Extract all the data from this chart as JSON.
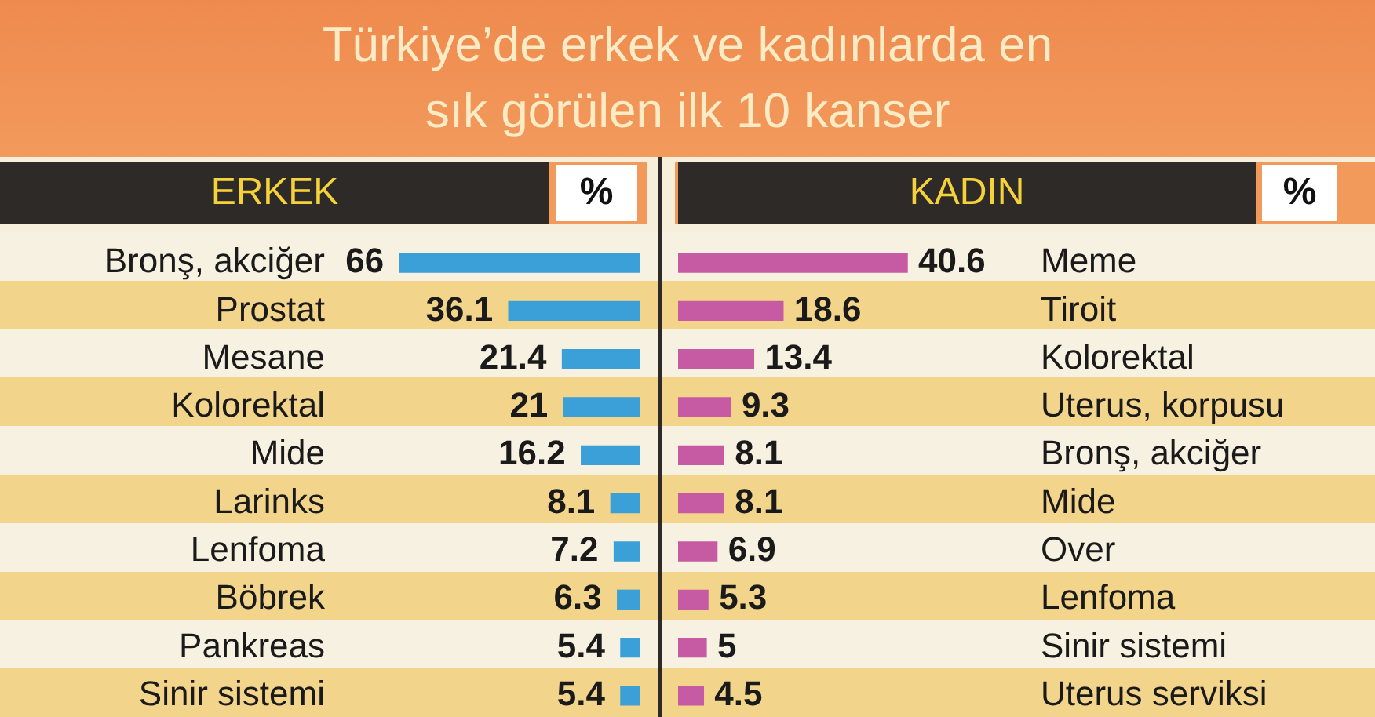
{
  "chart_data": [
    {
      "type": "bar",
      "orientation": "horizontal",
      "title": "Türkiye’de erkek ve kadınlarda en sık görülen ilk 10 kanser",
      "subtitle": "ERKEK",
      "xlabel": "%",
      "categories": [
        "Bronş, akciğer",
        "Prostat",
        "Mesane",
        "Kolorektal",
        "Mide",
        "Larinks",
        "Lenfoma",
        "Böbrek",
        "Pankreas",
        "Sinir sistemi"
      ],
      "values": [
        66,
        36.1,
        21.4,
        21,
        16.2,
        8.1,
        7.2,
        6.3,
        5.4,
        5.4
      ],
      "color": "#3b9fd8",
      "tick_labels": "y",
      "data_labels": true
    },
    {
      "type": "bar",
      "orientation": "horizontal",
      "subtitle": "KADIN",
      "xlabel": "%",
      "categories": [
        "Meme",
        "Tiroit",
        "Kolorektal",
        "Uterus, korpusu",
        "Bronş, akciğer",
        "Mide",
        "Over",
        "Lenfoma",
        "Sinir sistemi",
        "Uterus serviksi"
      ],
      "values": [
        40.6,
        18.6,
        13.4,
        9.3,
        8.1,
        8.1,
        6.9,
        5.3,
        5,
        4.5
      ],
      "color": "#c65ba3",
      "tick_labels": "y",
      "data_labels": true
    }
  ]
}
